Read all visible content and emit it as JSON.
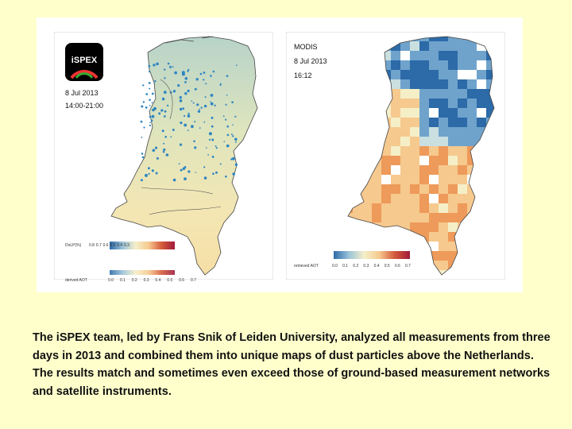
{
  "left_panel": {
    "logo_text": "iSPEX",
    "date": "8 Jul 2013",
    "time": "14:00-21:00",
    "colorbar_label": "DoLP(%)",
    "colorbar_ticks": [
      "0.8",
      "0.7",
      "0.6",
      "0.5",
      "0.4",
      "0.3"
    ],
    "colorbar_label_2": "derived AOT",
    "colorbar_ticks_2": [
      "0.0",
      "0.1",
      "0.2",
      "0.3",
      "0.4",
      "0.5",
      "0.6",
      "0.7"
    ]
  },
  "right_panel": {
    "source": "MODIS",
    "date": "8 Jul 2013",
    "time": "16:12",
    "colorbar_label": "retrieved AOT",
    "colorbar_ticks": [
      "0.0",
      "0.1",
      "0.2",
      "0.3",
      "0.4",
      "0.5",
      "0.6",
      "0.7"
    ]
  },
  "colorscale": [
    "#2c6aa8",
    "#6fa3cc",
    "#c9dfe0",
    "#f5efc8",
    "#f6c98e",
    "#ee9a5a",
    "#d45a3a",
    "#a01b3c"
  ],
  "caption": "The iSPEX team, led by Frans Snik of Leiden University, analyzed all measurements from three days in 2013 and combined them into unique maps of dust particles above the Netherlands. The results match and sometimes even exceed those of ground-based measurement networks and satellite instruments."
}
